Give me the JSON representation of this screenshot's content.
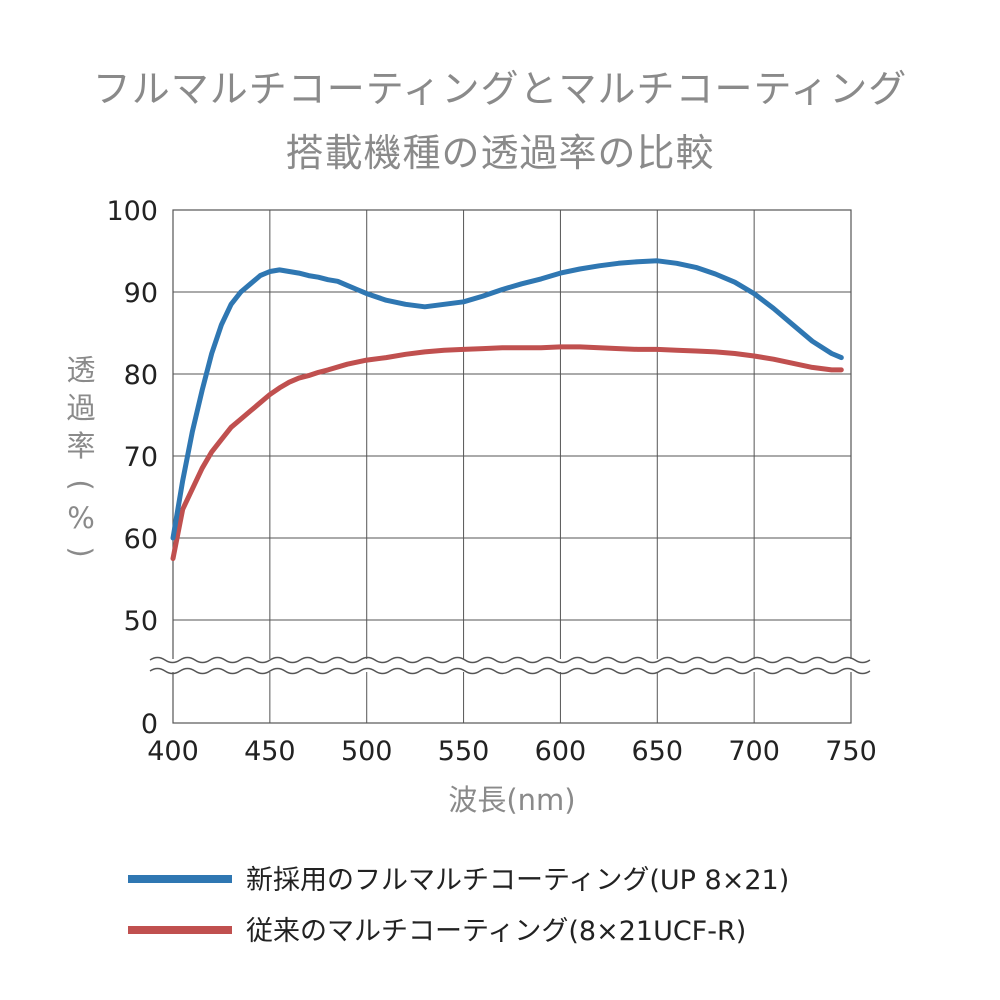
{
  "chart_data": {
    "type": "line",
    "title": [
      "フルマルチコーティングとマルチコーティング",
      "搭載機種の透過率の比較"
    ],
    "xlabel": "波長(nm)",
    "ylabel": [
      "透",
      "過",
      "率",
      "(",
      "%",
      ")"
    ],
    "xlim": [
      400,
      750
    ],
    "ylim": [
      0,
      100
    ],
    "axis_break_between": [
      0,
      50
    ],
    "x_ticks": [
      "400",
      "450",
      "500",
      "550",
      "600",
      "650",
      "700",
      "750"
    ],
    "y_ticks": [
      "100",
      "90",
      "80",
      "70",
      "60",
      "50",
      "0"
    ],
    "grid": true,
    "legend_position": "bottom",
    "series": [
      {
        "name": "新採用のフルマルチコーティング(UP 8×21)",
        "color": "#2f77b2",
        "x": [
          400,
          405,
          410,
          415,
          420,
          425,
          430,
          435,
          440,
          445,
          450,
          455,
          460,
          465,
          470,
          475,
          480,
          485,
          490,
          495,
          500,
          510,
          520,
          530,
          540,
          550,
          560,
          570,
          580,
          590,
          600,
          610,
          620,
          630,
          640,
          650,
          660,
          670,
          680,
          690,
          700,
          710,
          720,
          730,
          740,
          745
        ],
        "y": [
          60,
          67,
          73,
          78,
          82.5,
          86,
          88.5,
          90,
          91,
          92,
          92.5,
          92.7,
          92.5,
          92.3,
          92,
          91.8,
          91.5,
          91.3,
          90.8,
          90.3,
          89.8,
          89,
          88.5,
          88.2,
          88.5,
          88.8,
          89.5,
          90.3,
          91,
          91.6,
          92.3,
          92.8,
          93.2,
          93.5,
          93.7,
          93.8,
          93.5,
          93,
          92.2,
          91.2,
          89.8,
          88,
          86,
          84,
          82.5,
          82
        ]
      },
      {
        "name": "従来のマルチコーティング(8×21UCF-R)",
        "color": "#c0504f",
        "x": [
          400,
          405,
          410,
          415,
          420,
          425,
          430,
          435,
          440,
          445,
          450,
          455,
          460,
          465,
          470,
          475,
          480,
          490,
          500,
          510,
          520,
          530,
          540,
          550,
          560,
          570,
          580,
          590,
          600,
          610,
          620,
          630,
          640,
          650,
          660,
          670,
          680,
          690,
          700,
          710,
          720,
          730,
          740,
          745
        ],
        "y": [
          57.5,
          63.5,
          66,
          68.5,
          70.5,
          72,
          73.5,
          74.5,
          75.5,
          76.5,
          77.5,
          78.3,
          79,
          79.5,
          79.8,
          80.2,
          80.5,
          81.2,
          81.7,
          82,
          82.4,
          82.7,
          82.9,
          83,
          83.1,
          83.2,
          83.2,
          83.2,
          83.3,
          83.3,
          83.2,
          83.1,
          83,
          83,
          82.9,
          82.8,
          82.7,
          82.5,
          82.2,
          81.8,
          81.3,
          80.8,
          80.5,
          80.5
        ]
      }
    ]
  }
}
